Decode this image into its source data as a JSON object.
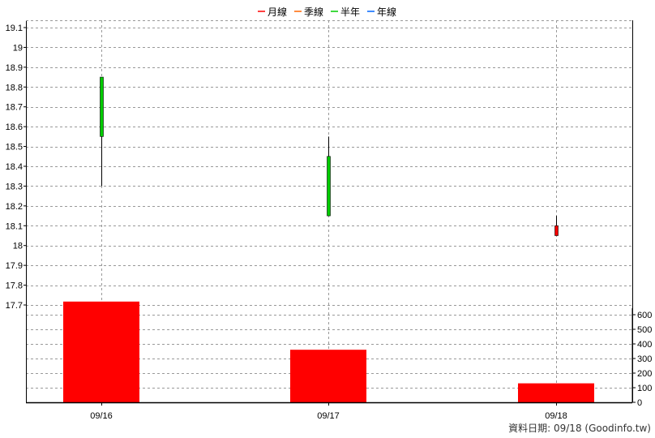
{
  "chart_data": {
    "type": "candlestick",
    "legend": [
      {
        "label": "月線",
        "color": "#ff0000"
      },
      {
        "label": "季線",
        "color": "#ff6600"
      },
      {
        "label": "半年",
        "color": "#00cc00"
      },
      {
        "label": "年線",
        "color": "#0066ff"
      }
    ],
    "legend_placement": "top-center",
    "categories": [
      "09/16",
      "09/17",
      "09/18"
    ],
    "candles": [
      {
        "date": "09/16",
        "open": 18.85,
        "high": 18.85,
        "low": 18.3,
        "close": 18.55
      },
      {
        "date": "09/17",
        "open": 18.45,
        "high": 18.55,
        "low": 18.15,
        "close": 18.15
      },
      {
        "date": "09/18",
        "open": 18.05,
        "high": 18.15,
        "low": 18.05,
        "close": 18.1
      }
    ],
    "up_color": "#ff0000",
    "down_color": "#00cc00",
    "volume": [
      {
        "date": "09/16",
        "value": 690
      },
      {
        "date": "09/17",
        "value": 360
      },
      {
        "date": "09/18",
        "value": 130
      }
    ],
    "volume_color": "#ff0000",
    "price_axis": {
      "ylim": [
        17.65,
        19.1
      ],
      "ticks": [
        "17.7",
        "17.8",
        "17.9",
        "18",
        "18.1",
        "18.2",
        "18.3",
        "18.4",
        "18.5",
        "18.6",
        "18.7",
        "18.8",
        "18.9",
        "19",
        "19.1"
      ],
      "side": "left"
    },
    "volume_axis": {
      "ylim": [
        0,
        660
      ],
      "ticks": [
        "0",
        "100",
        "200",
        "300",
        "400",
        "500",
        "600"
      ],
      "side": "right"
    },
    "grid": true,
    "grid_style": "dashed"
  },
  "footer": {
    "text": "資料日期: 09/18 (Goodinfo.tw)"
  }
}
